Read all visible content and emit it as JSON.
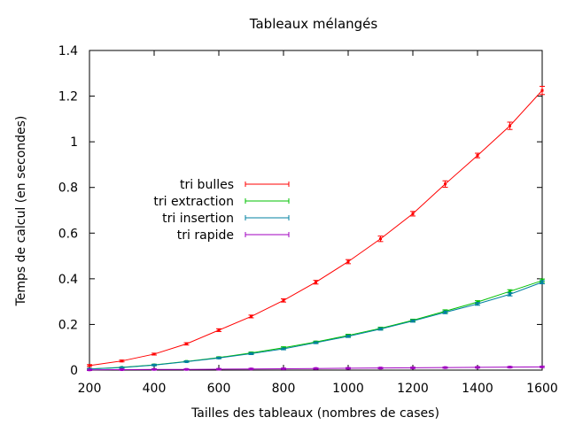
{
  "chart_data": {
    "type": "line",
    "title": "Tableaux mélangés",
    "xlabel": "Tailles des tableaux (nombres de cases)",
    "ylabel": "Temps de calcul (en secondes)",
    "xlim": [
      200,
      1600
    ],
    "ylim": [
      0,
      1.4
    ],
    "x_ticks": [
      200,
      400,
      600,
      800,
      1000,
      1200,
      1400,
      1600
    ],
    "y_ticks": [
      0,
      0.2,
      0.4,
      0.6,
      0.8,
      1,
      1.2,
      1.4
    ],
    "x_tick_labels": [
      "200",
      "400",
      "600",
      "800",
      "1000",
      "1200",
      "1400",
      "1600"
    ],
    "y_tick_labels": [
      "0",
      "0.2",
      "0.4",
      "0.6",
      "0.8",
      "1",
      "1.2",
      "1.4"
    ],
    "grid": false,
    "legend_position": "left-middle",
    "error_bars": true,
    "x": [
      200,
      300,
      400,
      500,
      600,
      700,
      800,
      900,
      1000,
      1100,
      1200,
      1300,
      1400,
      1500,
      1600
    ],
    "series": [
      {
        "name": "tri bulles",
        "color": "#ff0000",
        "values": [
          0.02,
          0.04,
          0.07,
          0.115,
          0.175,
          0.235,
          0.305,
          0.385,
          0.475,
          0.575,
          0.685,
          0.815,
          0.94,
          1.07,
          1.225
        ],
        "errors": [
          0.004,
          0.004,
          0.004,
          0.005,
          0.006,
          0.006,
          0.007,
          0.008,
          0.009,
          0.012,
          0.01,
          0.014,
          0.01,
          0.016,
          0.018
        ]
      },
      {
        "name": "tri extraction",
        "color": "#00c000",
        "values": [
          0.005,
          0.012,
          0.023,
          0.038,
          0.055,
          0.075,
          0.098,
          0.123,
          0.152,
          0.183,
          0.218,
          0.258,
          0.298,
          0.345,
          0.392
        ],
        "errors": [
          0.002,
          0.002,
          0.003,
          0.003,
          0.003,
          0.004,
          0.004,
          0.004,
          0.005,
          0.005,
          0.005,
          0.006,
          0.006,
          0.007,
          0.007
        ]
      },
      {
        "name": "tri insertion",
        "color": "#0080a0",
        "values": [
          0.005,
          0.011,
          0.022,
          0.037,
          0.053,
          0.072,
          0.093,
          0.12,
          0.148,
          0.18,
          0.215,
          0.253,
          0.29,
          0.332,
          0.385
        ],
        "errors": [
          0.002,
          0.002,
          0.003,
          0.003,
          0.003,
          0.004,
          0.004,
          0.004,
          0.005,
          0.005,
          0.005,
          0.006,
          0.006,
          0.007,
          0.007
        ]
      },
      {
        "name": "tri rapide",
        "color": "#a000c0",
        "values": [
          0.001,
          0.002,
          0.003,
          0.003,
          0.004,
          0.005,
          0.006,
          0.007,
          0.008,
          0.009,
          0.01,
          0.011,
          0.012,
          0.013,
          0.014
        ],
        "errors": [
          0.003,
          0.003,
          0.003,
          0.003,
          0.003,
          0.003,
          0.003,
          0.003,
          0.003,
          0.003,
          0.003,
          0.003,
          0.003,
          0.003,
          0.003
        ]
      }
    ]
  }
}
